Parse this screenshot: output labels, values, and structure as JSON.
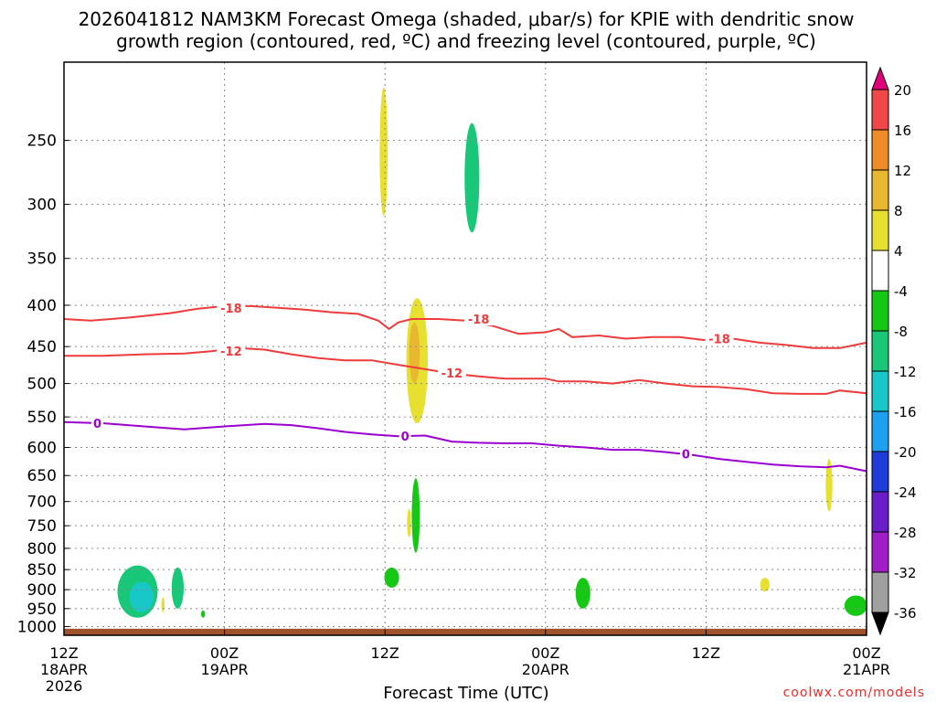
{
  "title": {
    "line1": "2026041812 NAM3KM Forecast Omega (shaded, μbar/s) for KPIE with dendritic snow",
    "line2": "growth region (contoured, red, ºC) and freezing level (contoured, purple, ºC)"
  },
  "credit": "coolwx.com/models",
  "colors": {
    "isotherm_dgz": "#ee3b3b",
    "freezing_level": "#9b00d0",
    "ground": "#a0522d",
    "grid": "#888888"
  },
  "chart_data": {
    "type": "heatmap",
    "xlabel": "Forecast Time (UTC)",
    "x_range_hours": [
      0,
      60
    ],
    "x_ticks": [
      {
        "hour": 0,
        "lines": [
          "12Z",
          "18APR",
          "2026"
        ]
      },
      {
        "hour": 12,
        "lines": [
          "00Z",
          "19APR"
        ]
      },
      {
        "hour": 24,
        "lines": [
          "12Z"
        ]
      },
      {
        "hour": 36,
        "lines": [
          "00Z",
          "20APR"
        ]
      },
      {
        "hour": 48,
        "lines": [
          "12Z"
        ]
      },
      {
        "hour": 60,
        "lines": [
          "00Z",
          "21APR"
        ]
      }
    ],
    "y_scale": "log",
    "y_range_hpa": [
      1025,
      200
    ],
    "y_ticks": [
      250,
      300,
      350,
      400,
      450,
      500,
      550,
      600,
      650,
      700,
      750,
      800,
      850,
      900,
      950,
      1000
    ],
    "grid": true,
    "colorbar": {
      "labels": [
        "20",
        "16",
        "12",
        "8",
        "4",
        "-4",
        "-8",
        "-12",
        "-16",
        "-20",
        "-24",
        "-28",
        "-32",
        "-36"
      ],
      "colors": [
        "#e0007a",
        "#f04848",
        "#f08c28",
        "#e8b830",
        "#e8e030",
        "#ffffff",
        "#14c814",
        "#18c878",
        "#18c8c8",
        "#1ea0f0",
        "#1e3cd8",
        "#6a1ec8",
        "#a01ec8",
        "#a0a0a0",
        "#000000"
      ]
    },
    "contours": [
      {
        "label": "-18",
        "color": "#ee3b3b",
        "label_points": [
          {
            "hour": 12.5,
            "hpa": 403
          },
          {
            "hour": 31,
            "hpa": 416
          },
          {
            "hour": 49,
            "hpa": 440
          }
        ],
        "points": [
          [
            0,
            416
          ],
          [
            2,
            418
          ],
          [
            5,
            414
          ],
          [
            8,
            409
          ],
          [
            10,
            404
          ],
          [
            12,
            401
          ],
          [
            14,
            401
          ],
          [
            16,
            403
          ],
          [
            18,
            405
          ],
          [
            20,
            408
          ],
          [
            22,
            410
          ],
          [
            23.5,
            418
          ],
          [
            24.3,
            428
          ],
          [
            25,
            420
          ],
          [
            26,
            416
          ],
          [
            28,
            416
          ],
          [
            30,
            418
          ],
          [
            32,
            424
          ],
          [
            34,
            434
          ],
          [
            36,
            432
          ],
          [
            37,
            428
          ],
          [
            38,
            438
          ],
          [
            40,
            436
          ],
          [
            42,
            440
          ],
          [
            44,
            438
          ],
          [
            46,
            438
          ],
          [
            48,
            442
          ],
          [
            50,
            440
          ],
          [
            52,
            445
          ],
          [
            54,
            448
          ],
          [
            56,
            452
          ],
          [
            58,
            452
          ],
          [
            60,
            445
          ]
        ]
      },
      {
        "label": "-12",
        "color": "#ee3b3b",
        "label_points": [
          {
            "hour": 12.5,
            "hpa": 456
          },
          {
            "hour": 29,
            "hpa": 485
          }
        ],
        "points": [
          [
            0,
            462
          ],
          [
            3,
            462
          ],
          [
            6,
            460
          ],
          [
            9,
            459
          ],
          [
            11,
            456
          ],
          [
            13,
            452
          ],
          [
            15,
            454
          ],
          [
            17,
            460
          ],
          [
            19,
            465
          ],
          [
            21,
            468
          ],
          [
            23,
            468
          ],
          [
            25,
            474
          ],
          [
            27,
            480
          ],
          [
            29,
            486
          ],
          [
            31,
            490
          ],
          [
            33,
            493
          ],
          [
            35,
            493
          ],
          [
            36,
            493
          ],
          [
            37,
            497
          ],
          [
            39,
            497
          ],
          [
            41,
            500
          ],
          [
            43,
            495
          ],
          [
            45,
            500
          ],
          [
            47,
            504
          ],
          [
            49,
            505
          ],
          [
            51,
            508
          ],
          [
            53,
            514
          ],
          [
            55,
            515
          ],
          [
            57,
            515
          ],
          [
            58,
            510
          ],
          [
            60,
            514
          ]
        ]
      },
      {
        "label": "0",
        "color": "#9b00d0",
        "label_points": [
          {
            "hour": 2.5,
            "hpa": 560
          },
          {
            "hour": 25.5,
            "hpa": 581
          },
          {
            "hour": 46.5,
            "hpa": 611
          }
        ],
        "points": [
          [
            0,
            558
          ],
          [
            3,
            560
          ],
          [
            6,
            565
          ],
          [
            9,
            570
          ],
          [
            12,
            565
          ],
          [
            15,
            561
          ],
          [
            17,
            563
          ],
          [
            19,
            568
          ],
          [
            21,
            574
          ],
          [
            23,
            578
          ],
          [
            25,
            581
          ],
          [
            27,
            580
          ],
          [
            29,
            590
          ],
          [
            31,
            592
          ],
          [
            33,
            593
          ],
          [
            35,
            593
          ],
          [
            37,
            597
          ],
          [
            39,
            600
          ],
          [
            41,
            604
          ],
          [
            43,
            604
          ],
          [
            45,
            608
          ],
          [
            47,
            613
          ],
          [
            49,
            620
          ],
          [
            51,
            625
          ],
          [
            53,
            630
          ],
          [
            55,
            633
          ],
          [
            57,
            635
          ],
          [
            58,
            632
          ],
          [
            60,
            642
          ]
        ]
      }
    ],
    "omega_cells": [
      {
        "value": -10,
        "hour": 5.5,
        "hpa": [
          840,
          975
        ],
        "half_width_hours": 1.5
      },
      {
        "value": -14,
        "hour": 5.8,
        "hpa": [
          880,
          960
        ],
        "half_width_hours": 0.9
      },
      {
        "value": -9,
        "hour": 8.5,
        "hpa": [
          845,
          950
        ],
        "half_width_hours": 0.45
      },
      {
        "value": 6,
        "hour": 7.4,
        "hpa": [
          920,
          960
        ],
        "half_width_hours": 0.12
      },
      {
        "value": -6,
        "hour": 10.4,
        "hpa": [
          955,
          975
        ],
        "half_width_hours": 0.15
      },
      {
        "value": 6,
        "hour": 23.9,
        "hpa": [
          215,
          310
        ],
        "half_width_hours": 0.3
      },
      {
        "value": -8,
        "hour": 30.5,
        "hpa": [
          238,
          325
        ],
        "half_width_hours": 0.55
      },
      {
        "value": 6,
        "hour": 26.4,
        "hpa": [
          392,
          560
        ],
        "half_width_hours": 0.8
      },
      {
        "value": 10,
        "hour": 26.2,
        "hpa": [
          420,
          500
        ],
        "half_width_hours": 0.4
      },
      {
        "value": 6,
        "hour": 25.8,
        "hpa": [
          715,
          775
        ],
        "half_width_hours": 0.15
      },
      {
        "value": -7,
        "hour": 26.3,
        "hpa": [
          655,
          810
        ],
        "half_width_hours": 0.3
      },
      {
        "value": -7,
        "hour": 24.5,
        "hpa": [
          845,
          895
        ],
        "half_width_hours": 0.55
      },
      {
        "value": -6,
        "hour": 38.8,
        "hpa": [
          870,
          950
        ],
        "half_width_hours": 0.55
      },
      {
        "value": 6,
        "hour": 52.4,
        "hpa": [
          870,
          905
        ],
        "half_width_hours": 0.35
      },
      {
        "value": 6,
        "hour": 57.2,
        "hpa": [
          620,
          720
        ],
        "half_width_hours": 0.25
      },
      {
        "value": -7,
        "hour": 59.2,
        "hpa": [
          915,
          970
        ],
        "half_width_hours": 0.85
      }
    ]
  }
}
